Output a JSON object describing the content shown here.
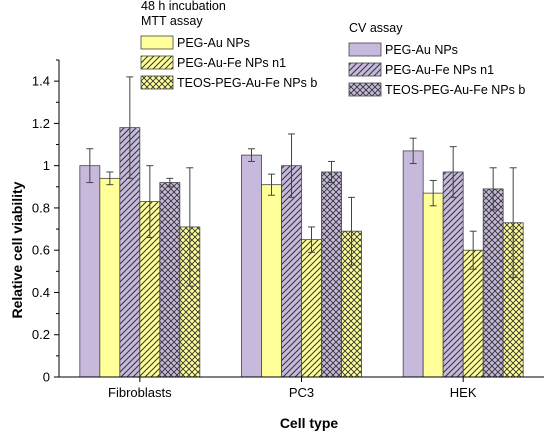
{
  "chart_data": {
    "type": "bar",
    "title": "",
    "xlabel": "Cell type",
    "ylabel": "Relative cell viability",
    "ylim": [
      0,
      1.5
    ],
    "yticks": [
      "0",
      "0.2",
      "0.4",
      "0.6",
      "0.8",
      "1",
      "1.2",
      "1.4"
    ],
    "categories": [
      "Fibroblasts",
      "PC3",
      "HEK"
    ],
    "legend_groups": [
      {
        "header_lines": [
          "48 h incubation",
          "MTT assay"
        ],
        "series_names": [
          "PEG-Au NPs",
          "PEG-Au-Fe NPs n1",
          "TEOS-PEG-Au-Fe NPs b"
        ]
      },
      {
        "header_lines": [
          "CV assay"
        ],
        "series_names": [
          "PEG-Au NPs",
          "PEG-Au-Fe NPs n1",
          "TEOS-PEG-Au-Fe NPs b"
        ]
      }
    ],
    "series": [
      {
        "name": "PEG-Au NPs",
        "assay": "CV assay",
        "color": "#c6b9dc",
        "pattern": "solid",
        "values": [
          1.0,
          1.05,
          1.07
        ],
        "errors": [
          0.08,
          0.03,
          0.06
        ]
      },
      {
        "name": "PEG-Au NPs",
        "assay": "MTT assay",
        "color": "#ffff99",
        "pattern": "solid",
        "values": [
          0.94,
          0.91,
          0.87
        ],
        "errors": [
          0.03,
          0.05,
          0.06
        ]
      },
      {
        "name": "PEG-Au-Fe NPs n1",
        "assay": "CV assay",
        "color": "#c6b9dc",
        "pattern": "diagonal",
        "values": [
          1.18,
          1.0,
          0.97
        ],
        "errors": [
          0.24,
          0.15,
          0.12
        ]
      },
      {
        "name": "PEG-Au-Fe NPs n1",
        "assay": "MTT assay",
        "color": "#ffff99",
        "pattern": "diagonal",
        "values": [
          0.83,
          0.65,
          0.6
        ],
        "errors": [
          0.17,
          0.06,
          0.09
        ]
      },
      {
        "name": "TEOS-PEG-Au-Fe NPs b",
        "assay": "CV assay",
        "color": "#c6b9dc",
        "pattern": "crosshatch",
        "values": [
          0.92,
          0.97,
          0.89
        ],
        "errors": [
          0.02,
          0.05,
          0.1
        ]
      },
      {
        "name": "TEOS-PEG-Au-Fe NPs b",
        "assay": "MTT assay",
        "color": "#ffff99",
        "pattern": "crosshatch",
        "values": [
          0.71,
          0.69,
          0.73
        ],
        "errors": [
          0.28,
          0.16,
          0.26
        ]
      }
    ],
    "grid": false,
    "legend_position": "top"
  }
}
